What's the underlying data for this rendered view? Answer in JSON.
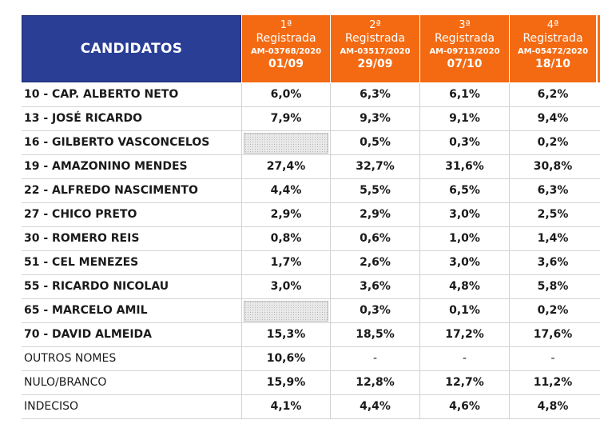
{
  "table": {
    "candidates_header": "CANDIDATOS",
    "columns": [
      {
        "num": "1ª",
        "label": "Registrada",
        "code": "AM-03768/2020",
        "date": "01/09"
      },
      {
        "num": "2ª",
        "label": "Registrada",
        "code": "AM-03517/2020",
        "date": "29/09"
      },
      {
        "num": "3ª",
        "label": "Registrada",
        "code": "AM-09713/2020",
        "date": "07/10"
      },
      {
        "num": "4ª",
        "label": "Registrada",
        "code": "AM-05472/2020",
        "date": "18/10"
      }
    ],
    "rows": [
      {
        "name": "10 - CAP. ALBERTO NETO",
        "values": [
          "6,0%",
          "6,3%",
          "6,1%",
          "6,2%"
        ]
      },
      {
        "name": "13 - JOSÉ RICARDO",
        "values": [
          "7,9%",
          "9,3%",
          "9,1%",
          "9,4%"
        ]
      },
      {
        "name": "16 - GILBERTO VASCONCELOS",
        "values": [
          "",
          "0,5%",
          "0,3%",
          "0,2%"
        ]
      },
      {
        "name": "19 - AMAZONINO MENDES",
        "values": [
          "27,4%",
          "32,7%",
          "31,6%",
          "30,8%"
        ]
      },
      {
        "name": "22 - ALFREDO NASCIMENTO",
        "values": [
          "4,4%",
          "5,5%",
          "6,5%",
          "6,3%"
        ]
      },
      {
        "name": "27 - CHICO PRETO",
        "values": [
          "2,9%",
          "2,9%",
          "3,0%",
          "2,5%"
        ]
      },
      {
        "name": "30 - ROMERO REIS",
        "values": [
          "0,8%",
          "0,6%",
          "1,0%",
          "1,4%"
        ]
      },
      {
        "name": "51 - CEL MENEZES",
        "values": [
          "1,7%",
          "2,6%",
          "3,0%",
          "3,6%"
        ]
      },
      {
        "name": "55 - RICARDO NICOLAU",
        "values": [
          "3,0%",
          "3,6%",
          "4,8%",
          "5,8%"
        ]
      },
      {
        "name": "65 - MARCELO AMIL",
        "values": [
          "",
          "0,3%",
          "0,1%",
          "0,2%"
        ]
      },
      {
        "name": "70 - DAVID ALMEIDA",
        "values": [
          "15,3%",
          "18,5%",
          "17,2%",
          "17,6%"
        ]
      },
      {
        "name": "OUTROS NOMES",
        "values": [
          "10,6%",
          "-",
          "-",
          "-"
        ]
      },
      {
        "name": "NULO/BRANCO",
        "values": [
          "15,9%",
          "12,8%",
          "12,7%",
          "11,2%"
        ]
      },
      {
        "name": "INDECISO",
        "values": [
          "4,1%",
          "4,4%",
          "4,6%",
          "4,8%"
        ]
      }
    ]
  },
  "colors": {
    "header_blue": "#2a3e96",
    "header_orange": "#f46a12",
    "text": "#1a1a1a",
    "grid": "#d2d2d2"
  }
}
